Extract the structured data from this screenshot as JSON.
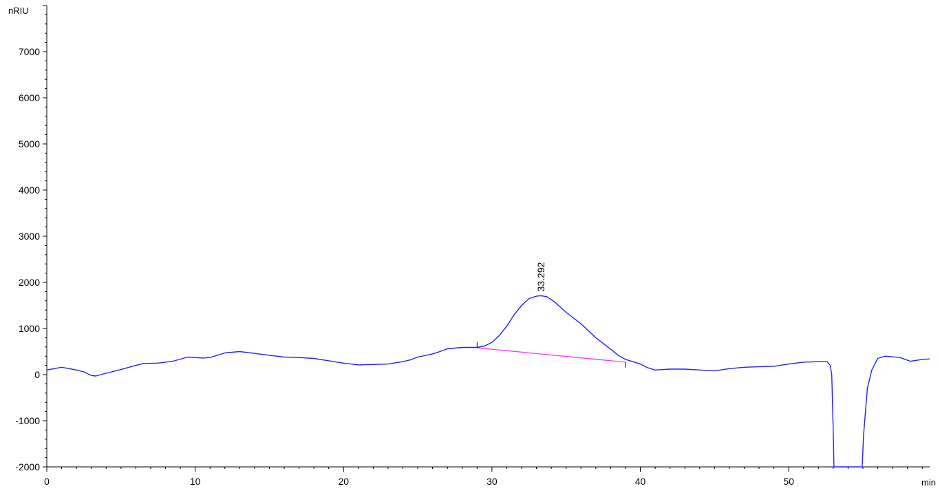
{
  "chart_data": {
    "type": "line",
    "title": "",
    "xlabel": "min",
    "ylabel": "nRIU",
    "xlim": [
      0,
      59.5
    ],
    "ylim": [
      -2000,
      8000
    ],
    "x_ticks": [
      0,
      10,
      20,
      30,
      40,
      50
    ],
    "y_ticks": [
      -2000,
      -1000,
      0,
      1000,
      2000,
      3000,
      4000,
      5000,
      6000,
      7000
    ],
    "grid": false,
    "colors": {
      "signal": "#2020ff",
      "baseline": "#ff30ff",
      "axis": "#000000"
    },
    "series": [
      {
        "points": [
          [
            0,
            100
          ],
          [
            1,
            160
          ],
          [
            2,
            100
          ],
          [
            2.5,
            60
          ],
          [
            3,
            -20
          ],
          [
            3.3,
            -30
          ],
          [
            4,
            30
          ],
          [
            5,
            110
          ],
          [
            6,
            200
          ],
          [
            6.5,
            240
          ],
          [
            7.5,
            250
          ],
          [
            8.5,
            290
          ],
          [
            9.5,
            380
          ],
          [
            10.5,
            360
          ],
          [
            11,
            370
          ],
          [
            12,
            470
          ],
          [
            13,
            500
          ],
          [
            14,
            460
          ],
          [
            15,
            420
          ],
          [
            16,
            380
          ],
          [
            17,
            370
          ],
          [
            18,
            350
          ],
          [
            19,
            300
          ],
          [
            20,
            250
          ],
          [
            21,
            210
          ],
          [
            22,
            220
          ],
          [
            23,
            230
          ],
          [
            24,
            280
          ],
          [
            24.5,
            320
          ],
          [
            25,
            380
          ],
          [
            26,
            450
          ],
          [
            26.5,
            500
          ],
          [
            27,
            560
          ],
          [
            28,
            590
          ],
          [
            28.5,
            590
          ],
          [
            29,
            590
          ],
          [
            29.5,
            620
          ],
          [
            30,
            700
          ],
          [
            30.5,
            850
          ],
          [
            31,
            1050
          ],
          [
            31.5,
            1300
          ],
          [
            32,
            1500
          ],
          [
            32.5,
            1650
          ],
          [
            33,
            1700
          ],
          [
            33.292,
            1710
          ],
          [
            33.7,
            1690
          ],
          [
            34.2,
            1580
          ],
          [
            35,
            1350
          ],
          [
            36,
            1100
          ],
          [
            36.5,
            950
          ],
          [
            37,
            800
          ],
          [
            38,
            550
          ],
          [
            38.5,
            420
          ],
          [
            39,
            330
          ],
          [
            39.5,
            280
          ],
          [
            40,
            230
          ],
          [
            40.5,
            150
          ],
          [
            41,
            100
          ],
          [
            42,
            120
          ],
          [
            43,
            120
          ],
          [
            44,
            100
          ],
          [
            45,
            80
          ],
          [
            46,
            130
          ],
          [
            47,
            160
          ],
          [
            48,
            170
          ],
          [
            49,
            180
          ],
          [
            50,
            230
          ],
          [
            51,
            270
          ],
          [
            52,
            280
          ],
          [
            52.6,
            280
          ],
          [
            52.8,
            200
          ],
          [
            52.9,
            0
          ],
          [
            53.0,
            -1200
          ],
          [
            53.05,
            -2000
          ],
          [
            54.95,
            -2000
          ],
          [
            55.05,
            -1300
          ],
          [
            55.3,
            -300
          ],
          [
            55.6,
            100
          ],
          [
            56,
            350
          ],
          [
            56.5,
            400
          ],
          [
            57.5,
            370
          ],
          [
            58.2,
            290
          ],
          [
            59,
            330
          ],
          [
            59.5,
            340
          ]
        ]
      }
    ],
    "baseline": [
      [
        29,
        580
      ],
      [
        39,
        270
      ]
    ],
    "peak_markers": [
      29,
      39
    ],
    "annotations": [
      {
        "text": "33.292",
        "x": 33.292,
        "y": 1710
      }
    ]
  }
}
